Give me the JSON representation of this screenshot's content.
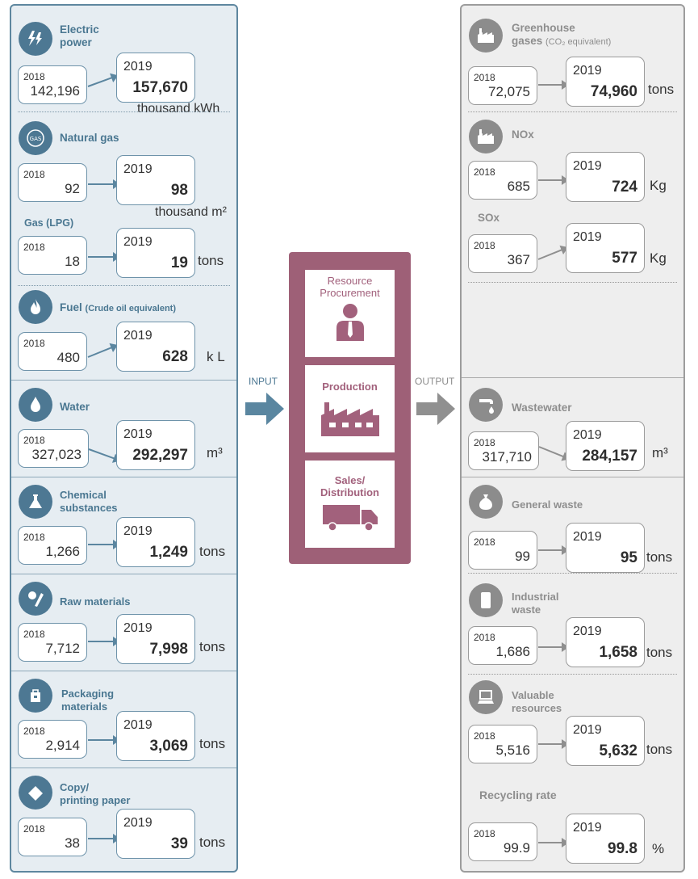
{
  "input": {
    "label": "INPUT",
    "electric": {
      "title1": "Electric",
      "title2": "power",
      "y2018": "2018",
      "v2018": "142,196",
      "y2019": "2019",
      "v2019": "157,670",
      "unit": "thousand kWh"
    },
    "natural_gas": {
      "title": "Natural gas",
      "y2018": "2018",
      "v2018": "92",
      "y2019": "2019",
      "v2019": "98",
      "unit": "thousand m²",
      "icon_text": "GAS"
    },
    "lpg": {
      "title": "Gas (LPG)",
      "y2018": "2018",
      "v2018": "18",
      "y2019": "2019",
      "v2019": "19",
      "unit": "tons"
    },
    "fuel": {
      "title": "Fuel",
      "sub": "(Crude oil equivalent)",
      "y2018": "2018",
      "v2018": "480",
      "y2019": "2019",
      "v2019": "628",
      "unit": "k L"
    },
    "water": {
      "title": "Water",
      "y2018": "2018",
      "v2018": "327,023",
      "y2019": "2019",
      "v2019": "292,297",
      "unit": "m³"
    },
    "chemical": {
      "title1": "Chemical",
      "title2": "substances",
      "y2018": "2018",
      "v2018": "1,266",
      "y2019": "2019",
      "v2019": "1,249",
      "unit": "tons"
    },
    "raw": {
      "title": "Raw materials",
      "y2018": "2018",
      "v2018": "7,712",
      "y2019": "2019",
      "v2019": "7,998",
      "unit": "tons"
    },
    "packaging": {
      "title1": "Packaging",
      "title2": "materials",
      "y2018": "2018",
      "v2018": "2,914",
      "y2019": "2019",
      "v2019": "3,069",
      "unit": "tons"
    },
    "paper": {
      "title1": "Copy/",
      "title2": "printing paper",
      "y2018": "2018",
      "v2018": "38",
      "y2019": "2019",
      "v2019": "39",
      "unit": "tons"
    }
  },
  "process": {
    "stage1_l1": "Resource",
    "stage1_l2": "Procurement",
    "stage2": "Production",
    "stage3_l1": "Sales/",
    "stage3_l2": "Distribution",
    "colors": {
      "frame": "#9e6077",
      "text": "#a2617c"
    }
  },
  "output": {
    "label": "OUTPUT",
    "ghg": {
      "title1": "Greenhouse",
      "title2": "gases",
      "sub": "(CO₂ equivalent)",
      "y2018": "2018",
      "v2018": "72,075",
      "y2019": "2019",
      "v2019": "74,960",
      "unit": "tons"
    },
    "nox": {
      "title": "NOx",
      "y2018": "2018",
      "v2018": "685",
      "y2019": "2019",
      "v2019": "724",
      "unit": "Kg"
    },
    "sox": {
      "title": "SOx",
      "y2018": "2018",
      "v2018": "367",
      "y2019": "2019",
      "v2019": "577",
      "unit": "Kg"
    },
    "wastewater": {
      "title": "Wastewater",
      "y2018": "2018",
      "v2018": "317,710",
      "y2019": "2019",
      "v2019": "284,157",
      "unit": "m³"
    },
    "general_waste": {
      "title": "General waste",
      "y2018": "2018",
      "v2018": "99",
      "y2019": "2019",
      "v2019": "95",
      "unit": "tons"
    },
    "industrial": {
      "title1": "Industrial",
      "title2": "waste",
      "y2018": "2018",
      "v2018": "1,686",
      "y2019": "2019",
      "v2019": "1,658",
      "unit": "tons"
    },
    "valuable": {
      "title1": "Valuable",
      "title2": "resources",
      "y2018": "2018",
      "v2018": "5,516",
      "y2019": "2019",
      "v2019": "5,632",
      "unit": "tons"
    },
    "recycling": {
      "title": "Recycling rate",
      "y2018": "2018",
      "v2018": "99.9",
      "y2019": "2019",
      "v2019": "99.8",
      "unit": "%"
    }
  },
  "colors": {
    "input_accent": "#4d7893",
    "output_accent": "#8c8c8c"
  }
}
